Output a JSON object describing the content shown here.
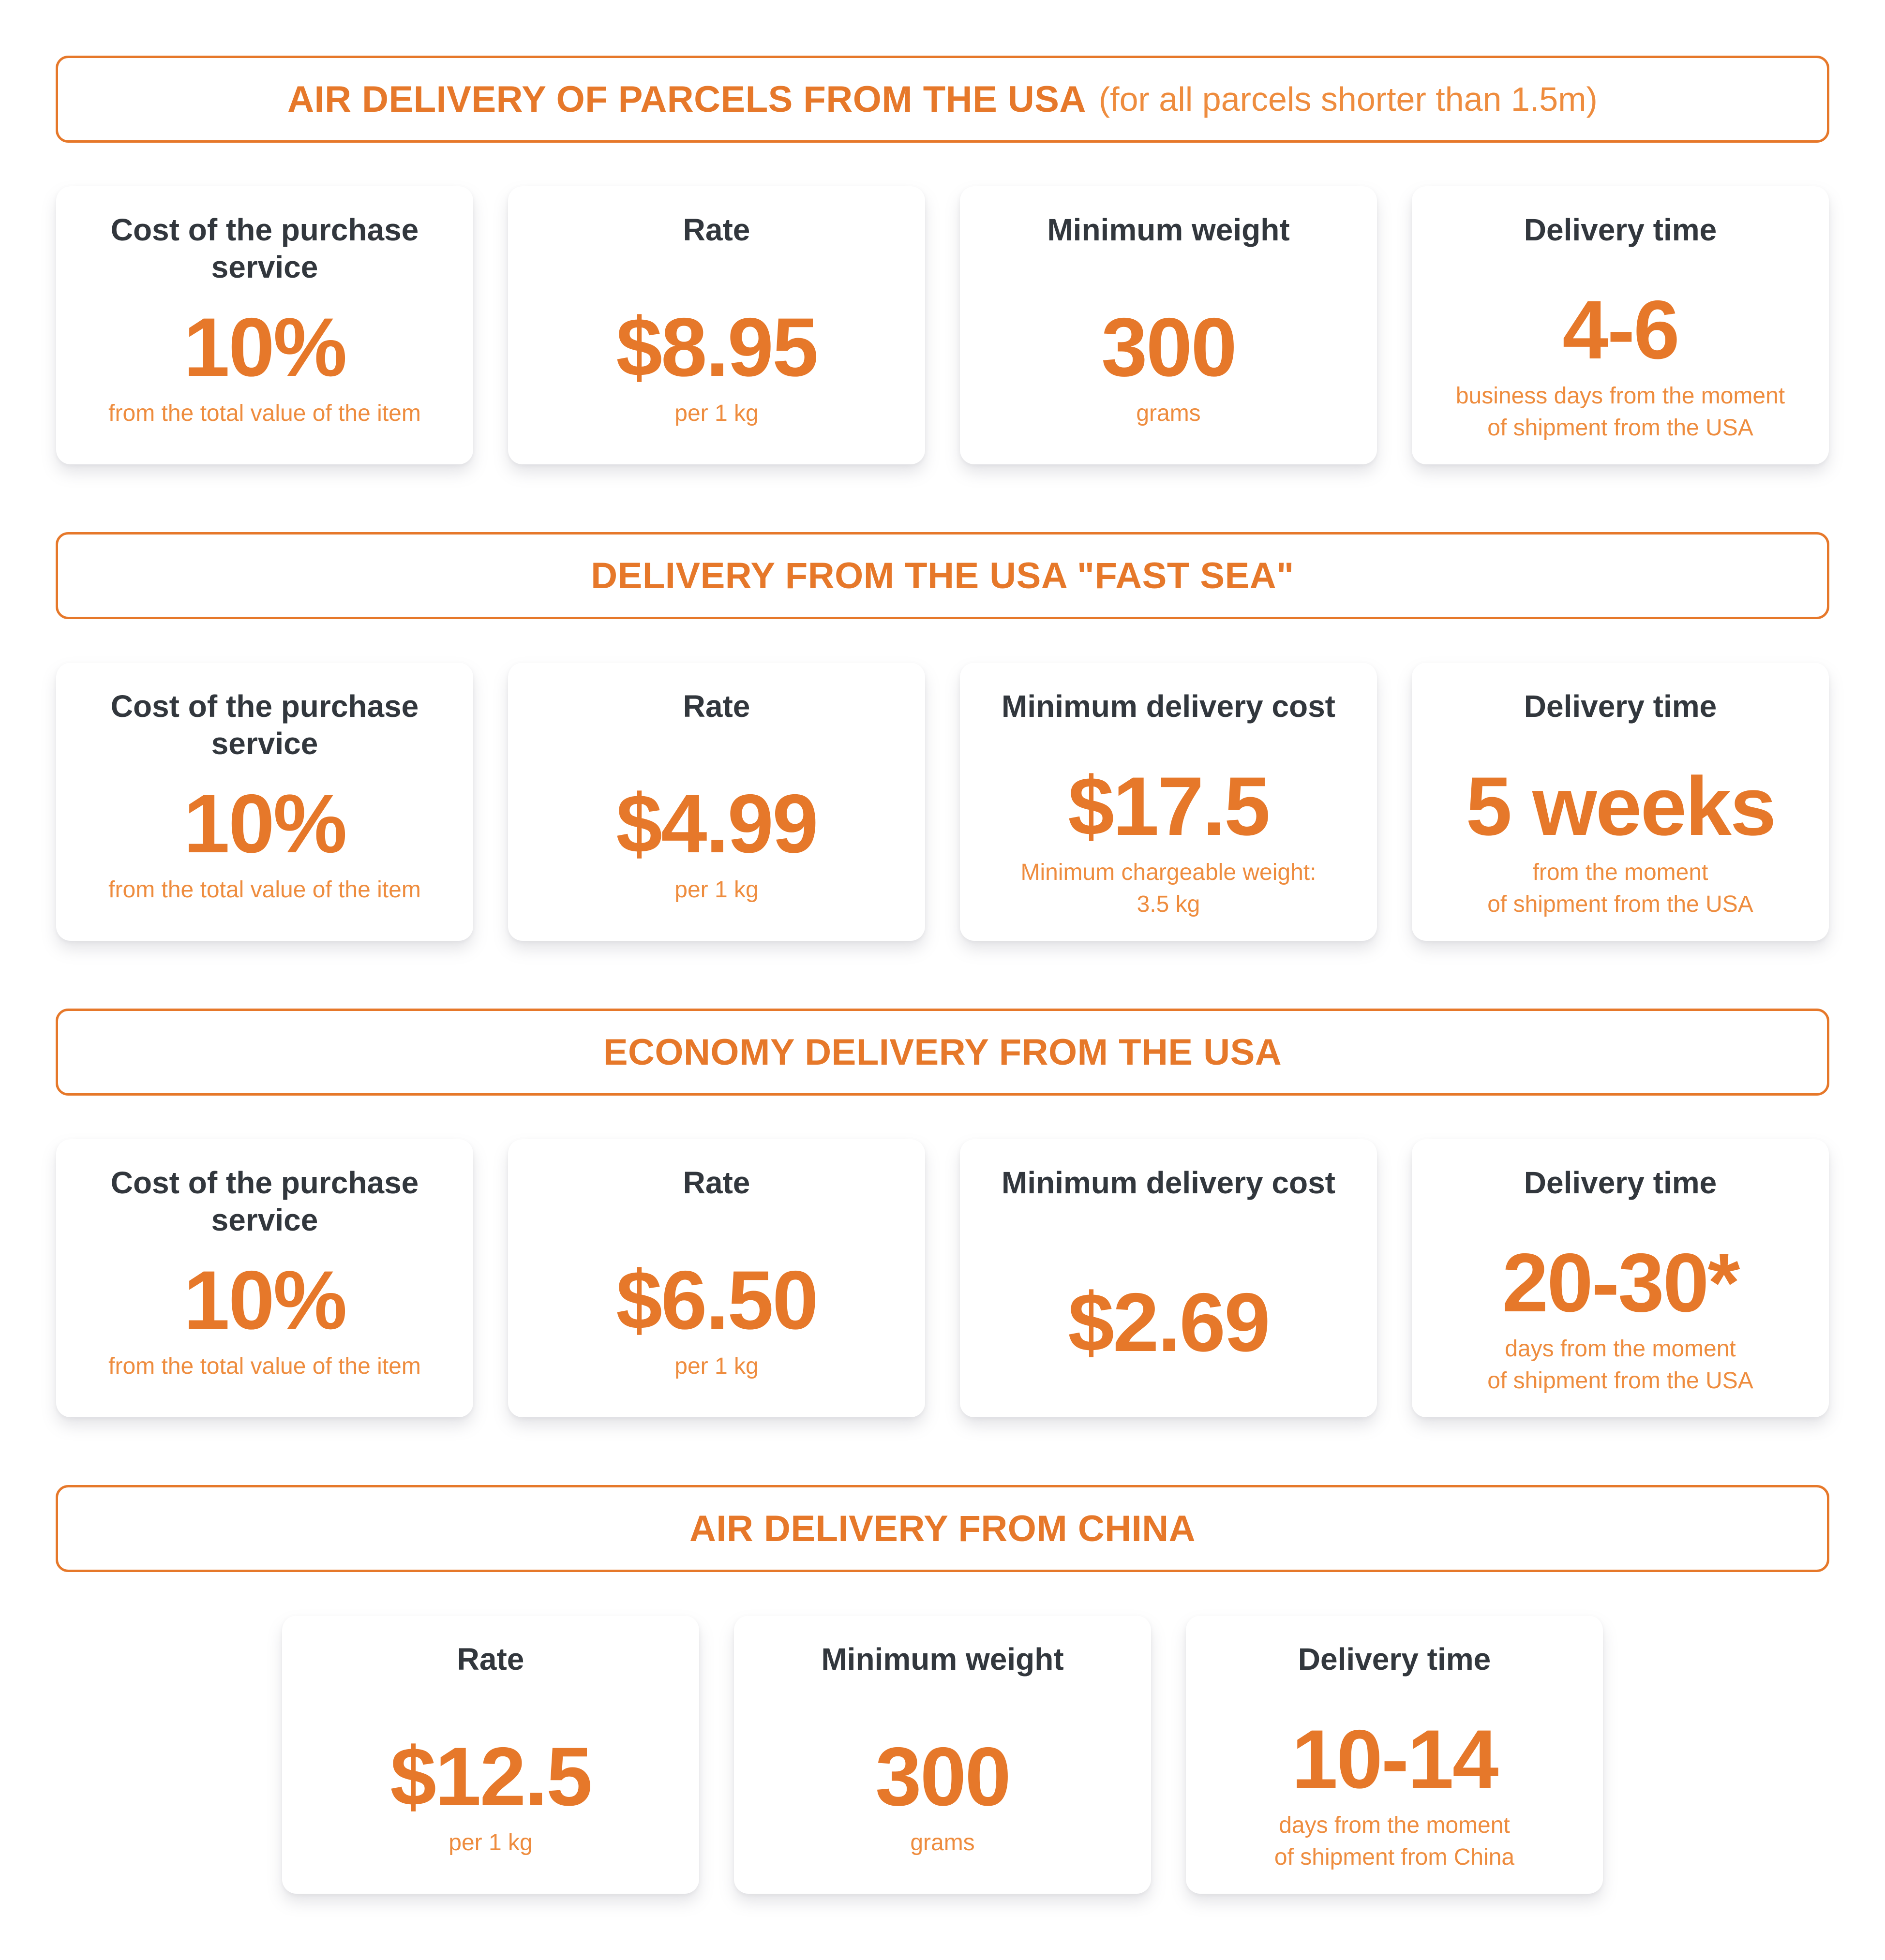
{
  "colors": {
    "accent": "#e6782a",
    "accent_light": "#ee8c3e",
    "heading_text": "#32373d",
    "card_bg": "#ffffff",
    "page_bg": "#ffffff"
  },
  "sections": [
    {
      "id": "air-delivery-usa",
      "title": "AIR DELIVERY OF PARCELS FROM THE USA",
      "title_note": "(for all parcels shorter than 1.5m)",
      "cards": [
        {
          "title": "Cost of the purchase\nservice",
          "value": "10%",
          "sub": "from the total value of the item"
        },
        {
          "title": "Rate",
          "value": "$8.95",
          "sub": "per 1 kg"
        },
        {
          "title": "Minimum  weight",
          "value": "300",
          "sub": "grams"
        },
        {
          "title": "Delivery time",
          "value": "4-6",
          "sub": "business days from the moment\nof shipment from the USA"
        }
      ]
    },
    {
      "id": "fast-sea-usa",
      "title": "DELIVERY FROM THE USA \"FAST SEA\"",
      "cards": [
        {
          "title": "Cost of the purchase\nservice",
          "value": "10%",
          "sub": "from the total value of the item"
        },
        {
          "title": "Rate",
          "value": "$4.99",
          "sub": "per 1 kg"
        },
        {
          "title": "Minimum delivery cost",
          "value": "$17.5",
          "sub": "Minimum chargeable weight:\n3.5 kg"
        },
        {
          "title": "Delivery time",
          "value": "5 weeks",
          "sub": "from the moment\nof shipment from the USA"
        }
      ]
    },
    {
      "id": "economy-usa",
      "title": "ECONOMY DELIVERY FROM THE USA",
      "cards": [
        {
          "title": "Cost of the purchase\nservice",
          "value": "10%",
          "sub": "from the total value of the item"
        },
        {
          "title": "Rate",
          "value": "$6.50",
          "sub": "per 1 kg"
        },
        {
          "title": "Minimum delivery cost",
          "value": "$2.69"
        },
        {
          "title": "Delivery time",
          "value": "20-30*",
          "sub": "days from the moment\nof shipment  from the USA"
        }
      ]
    },
    {
      "id": "air-delivery-china",
      "title": "AIR DELIVERY FROM CHINA",
      "cards": [
        {
          "title": "Rate",
          "value": "$12.5",
          "sub": "per 1 kg"
        },
        {
          "title": "Minimum weight",
          "value": "300",
          "sub": "grams"
        },
        {
          "title": "Delivery time",
          "value": "10-14",
          "sub": "days from the moment\nof shipment from China"
        }
      ]
    }
  ]
}
